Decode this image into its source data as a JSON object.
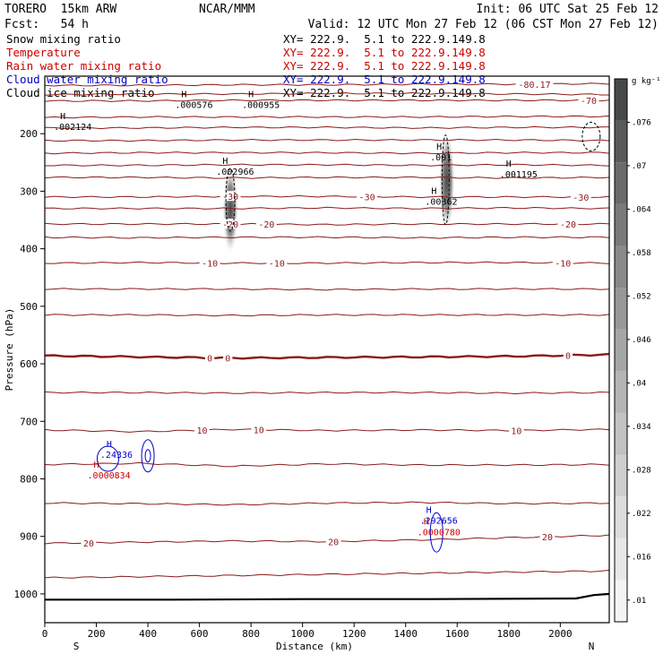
{
  "header": {
    "line1_left": "TORERO  15km ARW",
    "line1_mid": "NCAR/MMM",
    "line1_right": "Init: 06 UTC Sat 25 Feb 12",
    "line2_left": "Fcst:   54 h",
    "line2_right": "Valid: 12 UTC Mon 27 Feb 12 (06 CST Mon 27 Feb 12)"
  },
  "fields": [
    {
      "name": "Snow mixing ratio",
      "xy": "XY= 222.9.  5.1 to 222.9.149.8",
      "color": "#000000",
      "xy_color": "#000000"
    },
    {
      "name": "Temperature",
      "xy": "XY= 222.9.  5.1 to 222.9.149.8",
      "color": "#cc0000",
      "xy_color": "#cc0000"
    },
    {
      "name": "Rain water mixing ratio",
      "xy": "XY= 222.9.  5.1 to 222.9.149.8",
      "color": "#cc0000",
      "xy_color": "#cc0000"
    },
    {
      "name": "Cloud water mixing ratio",
      "xy": "XY= 222.9.  5.1 to 222.9.149.8",
      "color": "#0000cc",
      "xy_color": "#0000cc"
    },
    {
      "name": "Cloud ice mixing ratio",
      "xy": "XY= 222.9.  5.1 to 222.9.149.8",
      "color": "#000000",
      "xy_color": "#000000"
    }
  ],
  "chart_data": {
    "type": "heatmap",
    "title": "",
    "xlabel": "Distance (km)",
    "ylabel": "Pressure (hPa)",
    "xlim": [
      0,
      2190
    ],
    "ylim": [
      1050,
      100
    ],
    "x_ticks": [
      0,
      200,
      400,
      600,
      800,
      1000,
      1200,
      1400,
      1600,
      1800,
      2000
    ],
    "y_ticks": [
      200,
      300,
      400,
      500,
      600,
      700,
      800,
      900,
      1000
    ],
    "x_end_labels": {
      "left": "S",
      "right": "N"
    },
    "colorbar": {
      "unit": "g kg⁻¹",
      "ticks": [
        0.01,
        0.016,
        0.022,
        0.028,
        0.034,
        0.04,
        0.046,
        0.052,
        0.058,
        0.064,
        0.07,
        0.076
      ],
      "tick_labels": [
        ".01",
        ".016",
        ".022",
        ".028",
        ".034",
        ".04",
        ".046",
        ".052",
        ".058",
        ".064",
        ".07",
        ".076"
      ],
      "min": 0.007,
      "max": 0.082,
      "colors": [
        "#f4f4f4",
        "#e8e8e8",
        "#dcdcdc",
        "#cfcfcf",
        "#c2c2c2",
        "#b4b4b4",
        "#a6a6a6",
        "#989898",
        "#8a8a8a",
        "#7a7a7a",
        "#6a6a6a",
        "#5a5a5a",
        "#484848"
      ]
    },
    "temperature_isotherms": [
      {
        "label": "-80.17",
        "p": [
          116,
          116,
          115,
          115,
          114,
          114,
          113
        ],
        "labels": [
          {
            "x": 1900,
            "t": "-80.17"
          }
        ]
      },
      {
        "label": "",
        "p": [
          132,
          131,
          131,
          130,
          130,
          131,
          132
        ],
        "labels": []
      },
      {
        "label": "-70",
        "p": [
          143,
          143,
          142,
          142,
          142,
          142,
          142
        ],
        "labels": [
          {
            "x": 2110,
            "t": "-70"
          }
        ]
      },
      {
        "label": "",
        "p": [
          172,
          171,
          171,
          171,
          171,
          170,
          170
        ],
        "labels": []
      },
      {
        "label": "",
        "p": [
          190,
          190,
          189,
          189,
          190,
          189,
          189
        ],
        "labels": []
      },
      {
        "label": "",
        "p": [
          212,
          212,
          211,
          211,
          211,
          211,
          212
        ],
        "labels": []
      },
      {
        "label": "",
        "p": [
          234,
          233,
          233,
          233,
          234,
          233,
          233
        ],
        "labels": []
      },
      {
        "label": "",
        "p": [
          255,
          255,
          254,
          254,
          255,
          254,
          255
        ],
        "labels": []
      },
      {
        "label": "",
        "p": [
          276,
          276,
          277,
          276,
          276,
          277,
          276
        ],
        "labels": []
      },
      {
        "label": "-30",
        "p": [
          310,
          310,
          309,
          309,
          310,
          310,
          310
        ],
        "labels": [
          {
            "x": 720,
            "t": "-30"
          },
          {
            "x": 1250,
            "t": "-30"
          },
          {
            "x": 2080,
            "t": "-30"
          }
        ]
      },
      {
        "label": "",
        "p": [
          330,
          330,
          330,
          329,
          330,
          329,
          330
        ],
        "labels": []
      },
      {
        "label": "-20",
        "p": [
          357,
          357,
          357,
          358,
          357,
          357,
          357
        ],
        "labels": [
          {
            "x": 720,
            "t": "-20"
          },
          {
            "x": 860,
            "t": "-20"
          },
          {
            "x": 2030,
            "t": "-20"
          }
        ]
      },
      {
        "label": "",
        "p": [
          380,
          381,
          380,
          380,
          381,
          380,
          380
        ],
        "labels": []
      },
      {
        "label": "-10",
        "p": [
          425,
          424,
          425,
          425,
          424,
          424,
          425
        ],
        "labels": [
          {
            "x": 640,
            "t": "-10"
          },
          {
            "x": 900,
            "t": "-10"
          },
          {
            "x": 2010,
            "t": "-10"
          }
        ]
      },
      {
        "label": "",
        "p": [
          470,
          470,
          470,
          471,
          470,
          470,
          470
        ],
        "labels": []
      },
      {
        "label": "",
        "p": [
          515,
          515,
          516,
          515,
          515,
          515,
          515
        ],
        "labels": []
      },
      {
        "label": "0",
        "p": [
          586,
          588,
          590,
          589,
          588,
          587,
          584
        ],
        "labels": [
          {
            "x": 640,
            "t": "0"
          },
          {
            "x": 710,
            "t": "0"
          },
          {
            "x": 2030,
            "t": "0"
          }
        ],
        "bold": true
      },
      {
        "label": "",
        "p": [
          650,
          650,
          651,
          650,
          650,
          651,
          650
        ],
        "labels": []
      },
      {
        "label": "10",
        "p": [
          715,
          718,
          714,
          716,
          715,
          716,
          714
        ],
        "labels": [
          {
            "x": 610,
            "t": "10"
          },
          {
            "x": 830,
            "t": "10"
          },
          {
            "x": 1830,
            "t": "10"
          }
        ]
      },
      {
        "label": "",
        "p": [
          775,
          773,
          778,
          774,
          776,
          776,
          775
        ],
        "labels": []
      },
      {
        "label": "",
        "p": [
          842,
          843,
          845,
          842,
          841,
          843,
          842
        ],
        "labels": []
      },
      {
        "label": "20",
        "p": [
          912,
          910,
          908,
          909,
          906,
          902,
          898
        ],
        "labels": [
          {
            "x": 170,
            "t": "20"
          },
          {
            "x": 1120,
            "t": "20"
          },
          {
            "x": 1950,
            "t": "20"
          }
        ]
      },
      {
        "label": "",
        "p": [
          972,
          970,
          968,
          966,
          964,
          962,
          960
        ],
        "labels": []
      }
    ],
    "isotherm_x": [
      0,
      365,
      730,
      1095,
      1460,
      1825,
      2190
    ],
    "surface": {
      "x": [
        0,
        500,
        1000,
        1500,
        2060,
        2130,
        2190
      ],
      "p": [
        1010,
        1010,
        1009,
        1009,
        1008,
        1002,
        1000
      ]
    },
    "snow_shading": [
      {
        "x": 720,
        "p_top": 255,
        "p_bot": 410,
        "max": 0.071
      },
      {
        "x": 1560,
        "p_top": 195,
        "p_bot": 370,
        "max": 0.072
      }
    ],
    "maxima": [
      {
        "x": 70,
        "p": 190,
        "text": ".002124",
        "color": "#000000"
      },
      {
        "x": 540,
        "p": 152,
        "text": ".000576",
        "color": "#000000"
      },
      {
        "x": 800,
        "p": 152,
        "text": ".000955",
        "color": "#000000"
      },
      {
        "x": 700,
        "p": 268,
        "text": ".002966",
        "color": "#000000"
      },
      {
        "x": 1530,
        "p": 243,
        "text": ".001",
        "color": "#000000"
      },
      {
        "x": 1510,
        "p": 320,
        "text": ".00362",
        "color": "#000000"
      },
      {
        "x": 1800,
        "p": 273,
        "text": ".001195",
        "color": "#000000"
      },
      {
        "x": 250,
        "p": 760,
        "text": ".24336",
        "color": "#0000cc"
      },
      {
        "x": 200,
        "p": 796,
        "text": ".0000834",
        "color": "#cc0000"
      },
      {
        "x": 1490,
        "p": 875,
        "text": ".292656",
        "color": "#0000cc"
      },
      {
        "x": 1480,
        "p": 895,
        "text": ".0000780",
        "color": "#cc0000"
      }
    ]
  }
}
